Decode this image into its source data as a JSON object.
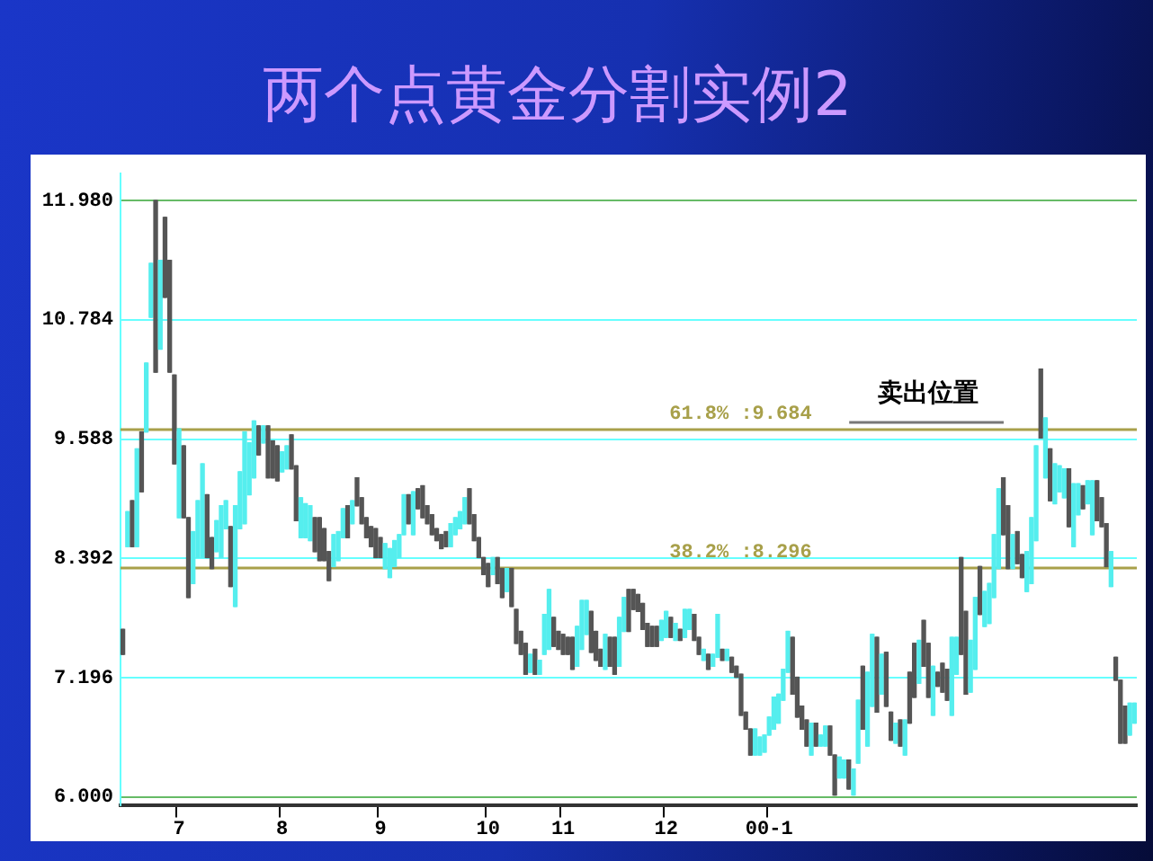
{
  "chart_data": {
    "type": "candlestick",
    "title": "两个点黄金分割实例2",
    "categories": [
      null,
      null,
      null,
      null,
      null,
      null,
      null,
      null,
      null,
      null,
      null,
      null,
      "7",
      null,
      null,
      null,
      null,
      null,
      null,
      null,
      null,
      null,
      null,
      null,
      null,
      null,
      null,
      null,
      null,
      null,
      null,
      null,
      null,
      null,
      "8",
      null,
      null,
      null,
      null,
      null,
      null,
      null,
      null,
      null,
      null,
      null,
      null,
      null,
      null,
      null,
      null,
      null,
      null,
      null,
      null,
      "9",
      null,
      null,
      null,
      null,
      null,
      null,
      null,
      null,
      null,
      null,
      null,
      null,
      null,
      null,
      null,
      null,
      null,
      null,
      null,
      null,
      null,
      null,
      "10",
      null,
      null,
      null,
      null,
      null,
      null,
      null,
      null,
      null,
      null,
      null,
      null,
      null,
      null,
      null,
      "11",
      null,
      null,
      null,
      null,
      null,
      null,
      null,
      null,
      null,
      null,
      null,
      null,
      null,
      null,
      null,
      null,
      null,
      null,
      null,
      null,
      null,
      "12",
      null,
      null,
      null,
      null,
      null,
      null,
      null,
      null,
      null,
      null,
      null,
      null,
      null,
      null,
      null,
      null,
      null,
      null,
      null,
      null,
      null,
      "00-1",
      null,
      null,
      null,
      null,
      null,
      null,
      null,
      null,
      null,
      null,
      null,
      null,
      null,
      null,
      null,
      null,
      null,
      null,
      null,
      null,
      null,
      null,
      null,
      null,
      null,
      null,
      null,
      null,
      null,
      null,
      null,
      null,
      null,
      null,
      null,
      null,
      null,
      null,
      null,
      null,
      null,
      null,
      null,
      null,
      null,
      null,
      null,
      null,
      null,
      null,
      null,
      null,
      null,
      null,
      null,
      null,
      null,
      null,
      null,
      null,
      null,
      null,
      null,
      null,
      null,
      null,
      null,
      null,
      null,
      null,
      null,
      null,
      null,
      null,
      null,
      null,
      null,
      null
    ],
    "ohlc": [
      [
        7.68,
        7.68,
        7.43,
        7.43
      ],
      [
        8.51,
        8.86,
        8.51,
        8.86
      ],
      [
        8.97,
        8.97,
        8.51,
        8.51
      ],
      [
        8.51,
        9.49,
        8.51,
        9.49
      ],
      [
        9.66,
        9.66,
        9.06,
        9.06
      ],
      [
        9.66,
        10.35,
        9.66,
        10.35
      ],
      [
        10.81,
        11.35,
        10.81,
        11.35
      ],
      [
        11.98,
        11.98,
        10.26,
        10.26
      ],
      [
        10.49,
        11.38,
        10.49,
        11.38
      ],
      [
        11.81,
        11.81,
        11.01,
        11.01
      ],
      [
        11.38,
        11.38,
        10.26,
        10.26
      ],
      [
        10.23,
        10.23,
        9.34,
        9.34
      ],
      [
        8.8,
        9.69,
        8.8,
        9.69
      ],
      [
        9.52,
        9.52,
        8.8,
        8.8
      ],
      [
        8.8,
        8.8,
        8.0,
        8.0
      ],
      [
        8.14,
        8.66,
        8.14,
        8.66
      ],
      [
        8.4,
        8.97,
        8.4,
        8.97
      ],
      [
        8.4,
        9.34,
        8.4,
        9.34
      ],
      [
        9.03,
        9.03,
        8.4,
        8.4
      ],
      [
        8.6,
        8.6,
        8.29,
        8.29
      ],
      [
        8.46,
        8.77,
        8.46,
        8.77
      ],
      [
        8.4,
        8.92,
        8.4,
        8.92
      ],
      [
        8.69,
        8.97,
        8.69,
        8.97
      ],
      [
        8.71,
        8.71,
        8.11,
        8.11
      ],
      [
        7.91,
        8.92,
        7.91,
        8.92
      ],
      [
        8.69,
        9.26,
        8.69,
        9.26
      ],
      [
        8.74,
        9.66,
        8.74,
        9.66
      ],
      [
        9.03,
        9.55,
        9.03,
        9.55
      ],
      [
        9.2,
        9.77,
        9.2,
        9.77
      ],
      [
        9.72,
        9.72,
        9.43,
        9.43
      ],
      [
        9.55,
        9.72,
        9.55,
        9.72
      ],
      [
        9.72,
        9.72,
        9.2,
        9.2
      ],
      [
        9.57,
        9.57,
        9.2,
        9.2
      ],
      [
        9.52,
        9.52,
        9.17,
        9.17
      ],
      [
        9.26,
        9.46,
        9.26,
        9.46
      ],
      [
        9.29,
        9.52,
        9.29,
        9.52
      ],
      [
        9.63,
        9.63,
        9.29,
        9.29
      ],
      [
        9.32,
        9.32,
        8.77,
        8.77
      ],
      [
        8.6,
        9.0,
        8.6,
        9.0
      ],
      [
        8.6,
        8.94,
        8.6,
        8.94
      ],
      [
        8.57,
        8.92,
        8.57,
        8.92
      ],
      [
        8.8,
        8.8,
        8.46,
        8.46
      ],
      [
        8.8,
        8.8,
        8.37,
        8.37
      ],
      [
        8.69,
        8.69,
        8.37,
        8.37
      ],
      [
        8.46,
        8.46,
        8.17,
        8.17
      ],
      [
        8.31,
        8.63,
        8.31,
        8.63
      ],
      [
        8.37,
        8.66,
        8.37,
        8.66
      ],
      [
        8.6,
        8.89,
        8.6,
        8.89
      ],
      [
        8.92,
        8.92,
        8.6,
        8.6
      ],
      [
        8.74,
        8.97,
        8.74,
        8.97
      ],
      [
        9.2,
        9.2,
        8.92,
        8.92
      ],
      [
        9.0,
        9.0,
        8.74,
        8.74
      ],
      [
        8.8,
        8.8,
        8.6,
        8.6
      ],
      [
        8.71,
        8.71,
        8.51,
        8.51
      ],
      [
        8.69,
        8.69,
        8.4,
        8.4
      ],
      [
        8.6,
        8.6,
        8.4,
        8.4
      ],
      [
        8.29,
        8.54,
        8.29,
        8.54
      ],
      [
        8.2,
        8.49,
        8.2,
        8.49
      ],
      [
        8.31,
        8.57,
        8.31,
        8.57
      ],
      [
        8.4,
        8.63,
        8.4,
        8.63
      ],
      [
        8.63,
        9.03,
        8.63,
        9.03
      ],
      [
        9.03,
        9.03,
        8.74,
        8.74
      ],
      [
        8.63,
        9.06,
        8.63,
        9.06
      ],
      [
        9.09,
        9.09,
        8.89,
        8.89
      ],
      [
        9.12,
        9.12,
        8.8,
        8.8
      ],
      [
        8.92,
        8.92,
        8.74,
        8.74
      ],
      [
        8.83,
        8.83,
        8.63,
        8.63
      ],
      [
        8.69,
        8.69,
        8.57,
        8.57
      ],
      [
        8.63,
        8.63,
        8.49,
        8.49
      ],
      [
        8.66,
        8.66,
        8.51,
        8.51
      ],
      [
        8.51,
        8.74,
        8.51,
        8.74
      ],
      [
        8.63,
        8.8,
        8.63,
        8.8
      ],
      [
        8.69,
        8.86,
        8.69,
        8.86
      ],
      [
        8.74,
        9.0,
        8.74,
        9.0
      ],
      [
        9.09,
        9.09,
        8.74,
        8.74
      ],
      [
        8.83,
        8.83,
        8.57,
        8.57
      ],
      [
        8.6,
        8.6,
        8.4,
        8.4
      ],
      [
        8.4,
        8.4,
        8.23,
        8.23
      ],
      [
        8.34,
        8.34,
        8.11,
        8.11
      ],
      [
        8.23,
        8.4,
        8.23,
        8.4
      ],
      [
        8.4,
        8.4,
        8.14,
        8.14
      ],
      [
        8.29,
        8.29,
        8.0,
        8.0
      ],
      [
        8.06,
        8.29,
        8.06,
        8.29
      ],
      [
        8.29,
        8.29,
        7.91,
        7.91
      ],
      [
        7.88,
        7.88,
        7.54,
        7.54
      ],
      [
        7.66,
        7.66,
        7.43,
        7.43
      ],
      [
        7.54,
        7.54,
        7.23,
        7.23
      ],
      [
        7.25,
        7.43,
        7.25,
        7.43
      ],
      [
        7.48,
        7.48,
        7.23,
        7.23
      ],
      [
        7.23,
        7.37,
        7.23,
        7.37
      ],
      [
        7.43,
        7.83,
        7.43,
        7.83
      ],
      [
        7.48,
        8.08,
        7.48,
        8.08
      ],
      [
        7.8,
        7.8,
        7.51,
        7.51
      ],
      [
        7.66,
        7.66,
        7.48,
        7.48
      ],
      [
        7.63,
        7.63,
        7.43,
        7.43
      ],
      [
        7.6,
        7.6,
        7.43,
        7.43
      ],
      [
        7.6,
        7.6,
        7.28,
        7.28
      ],
      [
        7.31,
        7.71,
        7.31,
        7.71
      ],
      [
        7.48,
        7.97,
        7.48,
        7.97
      ],
      [
        7.63,
        7.97,
        7.63,
        7.97
      ],
      [
        7.86,
        7.86,
        7.45,
        7.45
      ],
      [
        7.66,
        7.66,
        7.37,
        7.37
      ],
      [
        7.48,
        7.48,
        7.31,
        7.31
      ],
      [
        7.28,
        7.63,
        7.28,
        7.63
      ],
      [
        7.6,
        7.6,
        7.31,
        7.31
      ],
      [
        7.6,
        7.6,
        7.23,
        7.23
      ],
      [
        7.31,
        7.8,
        7.31,
        7.8
      ],
      [
        7.66,
        8.0,
        7.66,
        8.0
      ],
      [
        8.08,
        8.08,
        7.66,
        7.66
      ],
      [
        8.08,
        8.08,
        7.88,
        7.88
      ],
      [
        8.03,
        8.03,
        7.86,
        7.86
      ],
      [
        7.94,
        7.94,
        7.68,
        7.68
      ],
      [
        7.74,
        7.74,
        7.51,
        7.51
      ],
      [
        7.71,
        7.71,
        7.51,
        7.51
      ],
      [
        7.71,
        7.71,
        7.51,
        7.51
      ],
      [
        7.57,
        7.77,
        7.57,
        7.77
      ],
      [
        7.6,
        7.86,
        7.6,
        7.86
      ],
      [
        7.8,
        7.8,
        7.6,
        7.6
      ],
      [
        7.57,
        7.74,
        7.57,
        7.74
      ],
      [
        7.68,
        7.68,
        7.57,
        7.57
      ],
      [
        7.6,
        7.88,
        7.6,
        7.88
      ],
      [
        7.68,
        7.88,
        7.68,
        7.88
      ],
      [
        7.83,
        7.83,
        7.57,
        7.57
      ],
      [
        7.6,
        7.6,
        7.43,
        7.43
      ],
      [
        7.37,
        7.48,
        7.37,
        7.48
      ],
      [
        7.43,
        7.43,
        7.28,
        7.28
      ],
      [
        7.31,
        7.43,
        7.31,
        7.43
      ],
      [
        7.4,
        7.83,
        7.4,
        7.83
      ],
      [
        7.48,
        7.48,
        7.37,
        7.37
      ],
      [
        7.37,
        7.48,
        7.37,
        7.48
      ],
      [
        7.4,
        7.4,
        7.25,
        7.25
      ],
      [
        7.31,
        7.31,
        7.2,
        7.2
      ],
      [
        7.23,
        7.23,
        6.82,
        6.82
      ],
      [
        6.85,
        6.85,
        6.68,
        6.68
      ],
      [
        6.68,
        6.68,
        6.42,
        6.42
      ],
      [
        6.42,
        6.68,
        6.42,
        6.68
      ],
      [
        6.42,
        6.6,
        6.42,
        6.6
      ],
      [
        6.45,
        6.62,
        6.45,
        6.62
      ],
      [
        6.62,
        6.8,
        6.62,
        6.8
      ],
      [
        6.68,
        7.0,
        6.68,
        7.0
      ],
      [
        6.74,
        7.03,
        6.74,
        7.03
      ],
      [
        6.97,
        7.28,
        6.97,
        7.28
      ],
      [
        7.25,
        7.66,
        7.25,
        7.66
      ],
      [
        7.6,
        7.6,
        7.03,
        7.03
      ],
      [
        7.2,
        7.2,
        6.8,
        6.8
      ],
      [
        6.91,
        6.91,
        6.68,
        6.68
      ],
      [
        6.77,
        6.77,
        6.51,
        6.51
      ],
      [
        6.42,
        6.74,
        6.42,
        6.74
      ],
      [
        6.74,
        6.74,
        6.51,
        6.51
      ],
      [
        6.51,
        6.62,
        6.51,
        6.62
      ],
      [
        6.51,
        6.71,
        6.51,
        6.71
      ],
      [
        6.71,
        6.71,
        6.42,
        6.42
      ],
      [
        6.42,
        6.42,
        6.02,
        6.02
      ],
      [
        6.19,
        6.4,
        6.19,
        6.4
      ],
      [
        6.19,
        6.37,
        6.19,
        6.37
      ],
      [
        6.37,
        6.37,
        6.08,
        6.08
      ],
      [
        6.02,
        6.28,
        6.02,
        6.28
      ],
      [
        6.34,
        6.97,
        6.34,
        6.97
      ],
      [
        7.31,
        7.31,
        6.68,
        6.68
      ],
      [
        6.51,
        7.25,
        6.51,
        7.25
      ],
      [
        6.91,
        7.63,
        6.91,
        7.63
      ],
      [
        7.6,
        7.6,
        6.85,
        6.85
      ],
      [
        7.03,
        7.43,
        7.03,
        7.43
      ],
      [
        7.45,
        7.45,
        6.91,
        6.91
      ],
      [
        6.85,
        6.85,
        6.57,
        6.57
      ],
      [
        6.54,
        6.74,
        6.54,
        6.74
      ],
      [
        6.77,
        6.77,
        6.51,
        6.51
      ],
      [
        6.42,
        6.77,
        6.42,
        6.77
      ],
      [
        7.25,
        7.25,
        6.74,
        6.74
      ],
      [
        7.54,
        7.54,
        7.0,
        7.0
      ],
      [
        7.14,
        7.57,
        7.14,
        7.57
      ],
      [
        7.77,
        7.77,
        7.31,
        7.31
      ],
      [
        7.54,
        7.54,
        7.0,
        7.0
      ],
      [
        6.82,
        7.31,
        6.82,
        7.31
      ],
      [
        7.25,
        7.25,
        7.11,
        7.11
      ],
      [
        7.34,
        7.34,
        7.05,
        7.05
      ],
      [
        7.28,
        7.28,
        6.97,
        6.97
      ],
      [
        6.82,
        7.6,
        6.82,
        7.6
      ],
      [
        7.23,
        7.6,
        7.23,
        7.6
      ],
      [
        8.4,
        8.4,
        7.43,
        7.43
      ],
      [
        7.86,
        7.86,
        7.03,
        7.03
      ],
      [
        7.05,
        7.57,
        7.05,
        7.57
      ],
      [
        7.28,
        8.0,
        7.28,
        8.0
      ],
      [
        8.31,
        8.31,
        7.83,
        7.83
      ],
      [
        7.71,
        8.06,
        7.71,
        8.06
      ],
      [
        7.74,
        8.14,
        7.74,
        8.14
      ],
      [
        8.0,
        8.63,
        8.0,
        8.63
      ],
      [
        8.29,
        9.09,
        8.29,
        9.09
      ],
      [
        9.2,
        9.2,
        8.63,
        8.63
      ],
      [
        8.92,
        8.92,
        8.29,
        8.29
      ],
      [
        8.29,
        8.63,
        8.29,
        8.63
      ],
      [
        8.66,
        8.66,
        8.34,
        8.34
      ],
      [
        8.43,
        8.43,
        8.2,
        8.2
      ],
      [
        8.06,
        8.46,
        8.06,
        8.46
      ],
      [
        8.14,
        8.8,
        8.14,
        8.8
      ],
      [
        8.57,
        9.52,
        8.57,
        9.52
      ],
      [
        10.29,
        10.29,
        9.6,
        9.6
      ],
      [
        9.2,
        9.8,
        9.2,
        9.8
      ],
      [
        9.49,
        9.49,
        8.97,
        8.97
      ],
      [
        8.94,
        9.34,
        8.94,
        9.34
      ],
      [
        9.06,
        9.32,
        9.06,
        9.32
      ],
      [
        9.0,
        9.29,
        9.0,
        9.29
      ],
      [
        9.29,
        9.29,
        8.71,
        8.71
      ],
      [
        8.51,
        9.14,
        8.51,
        9.14
      ],
      [
        8.83,
        9.14,
        8.83,
        9.14
      ],
      [
        9.12,
        9.12,
        8.89,
        8.89
      ],
      [
        8.94,
        9.17,
        8.94,
        9.17
      ],
      [
        8.63,
        9.17,
        8.63,
        9.17
      ],
      [
        9.17,
        9.17,
        8.77,
        8.77
      ],
      [
        9.0,
        9.0,
        8.71,
        8.71
      ],
      [
        8.74,
        8.74,
        8.31,
        8.31
      ],
      [
        8.11,
        8.46,
        8.11,
        8.46
      ],
      [
        7.4,
        7.4,
        7.17,
        7.17
      ],
      [
        7.17,
        7.17,
        6.54,
        6.54
      ],
      [
        6.91,
        6.91,
        6.54,
        6.54
      ],
      [
        6.62,
        6.94,
        6.62,
        6.94
      ],
      [
        6.74,
        6.94,
        6.74,
        6.94
      ]
    ],
    "colors": [
      "#555555",
      "#55eeee",
      "#555555",
      "#55eeee",
      "#555555",
      "#55eeee",
      "#55eeee",
      "#555555",
      "#55eeee",
      "#555555",
      "#555555",
      "#555555",
      "#55eeee",
      "#555555",
      "#555555",
      "#55eeee",
      "#55eeee",
      "#55eeee",
      "#555555",
      "#555555",
      "#55eeee",
      "#55eeee",
      "#55eeee",
      "#555555",
      "#55eeee",
      "#55eeee",
      "#55eeee",
      "#55eeee",
      "#55eeee",
      "#555555",
      "#55eeee",
      "#555555",
      "#555555",
      "#555555",
      "#55eeee",
      "#55eeee",
      "#555555",
      "#555555",
      "#55eeee",
      "#55eeee",
      "#55eeee",
      "#555555",
      "#555555",
      "#555555",
      "#555555",
      "#55eeee",
      "#55eeee",
      "#55eeee",
      "#555555",
      "#55eeee",
      "#555555",
      "#555555",
      "#555555",
      "#555555",
      "#555555",
      "#555555",
      "#55eeee",
      "#55eeee",
      "#55eeee",
      "#55eeee",
      "#55eeee",
      "#555555",
      "#55eeee",
      "#555555",
      "#555555",
      "#555555",
      "#555555",
      "#555555",
      "#555555",
      "#555555",
      "#55eeee",
      "#55eeee",
      "#55eeee",
      "#55eeee",
      "#555555",
      "#555555",
      "#555555",
      "#555555",
      "#555555",
      "#55eeee",
      "#555555",
      "#555555",
      "#55eeee",
      "#555555",
      "#555555",
      "#555555",
      "#555555",
      "#55eeee",
      "#555555",
      "#55eeee",
      "#55eeee",
      "#55eeee",
      "#555555",
      "#555555",
      "#555555",
      "#555555",
      "#555555",
      "#55eeee",
      "#55eeee",
      "#55eeee",
      "#555555",
      "#555555",
      "#555555",
      "#55eeee",
      "#555555",
      "#555555",
      "#55eeee",
      "#55eeee",
      "#555555",
      "#555555",
      "#555555",
      "#555555",
      "#555555",
      "#555555",
      "#555555",
      "#55eeee",
      "#55eeee",
      "#555555",
      "#55eeee",
      "#555555",
      "#55eeee",
      "#55eeee",
      "#555555",
      "#555555",
      "#55eeee",
      "#555555",
      "#55eeee",
      "#55eeee",
      "#555555",
      "#55eeee",
      "#555555",
      "#555555",
      "#555555",
      "#555555",
      "#555555",
      "#55eeee",
      "#55eeee",
      "#55eeee",
      "#55eeee",
      "#55eeee",
      "#55eeee",
      "#55eeee",
      "#55eeee",
      "#555555",
      "#555555",
      "#555555",
      "#555555",
      "#55eeee",
      "#555555",
      "#55eeee",
      "#55eeee",
      "#555555",
      "#555555",
      "#55eeee",
      "#55eeee",
      "#555555",
      "#55eeee",
      "#55eeee",
      "#555555",
      "#55eeee",
      "#55eeee",
      "#555555",
      "#55eeee",
      "#555555",
      "#555555",
      "#55eeee",
      "#555555",
      "#55eeee",
      "#555555",
      "#555555",
      "#55eeee",
      "#555555",
      "#555555",
      "#55eeee",
      "#555555",
      "#555555",
      "#555555",
      "#55eeee",
      "#55eeee",
      "#555555",
      "#555555",
      "#55eeee",
      "#55eeee",
      "#555555",
      "#55eeee",
      "#55eeee",
      "#55eeee",
      "#55eeee",
      "#555555",
      "#555555",
      "#55eeee",
      "#555555",
      "#555555",
      "#55eeee",
      "#55eeee",
      "#55eeee",
      "#555555",
      "#55eeee",
      "#555555",
      "#55eeee",
      "#55eeee",
      "#55eeee",
      "#555555",
      "#55eeee",
      "#55eeee",
      "#555555",
      "#55eeee",
      "#55eeee",
      "#555555",
      "#555555",
      "#555555",
      "#55eeee",
      "#555555",
      "#555555",
      "#555555",
      "#55eeee",
      "#55eeee"
    ],
    "ylim": [
      5.92,
      12.25
    ],
    "yticks": [
      {
        "value": 6,
        "label": "6.000"
      },
      {
        "value": 7.196,
        "label": "7.196"
      },
      {
        "value": 8.392,
        "label": "8.392"
      },
      {
        "value": 9.588,
        "label": "9.588"
      },
      {
        "value": 10.784,
        "label": "10.784"
      },
      {
        "value": 11.98,
        "label": "11.980"
      }
    ],
    "grid": "y",
    "legend": false,
    "ref_lines": [
      {
        "axis": "y",
        "value": 9.684,
        "label": "61.8% :9.684",
        "color": "#a8a04a"
      },
      {
        "axis": "y",
        "value": 8.296,
        "label": "38.2% :8.296",
        "color": "#a8a04a"
      }
    ],
    "annotations": [
      "卖出位置"
    ]
  }
}
